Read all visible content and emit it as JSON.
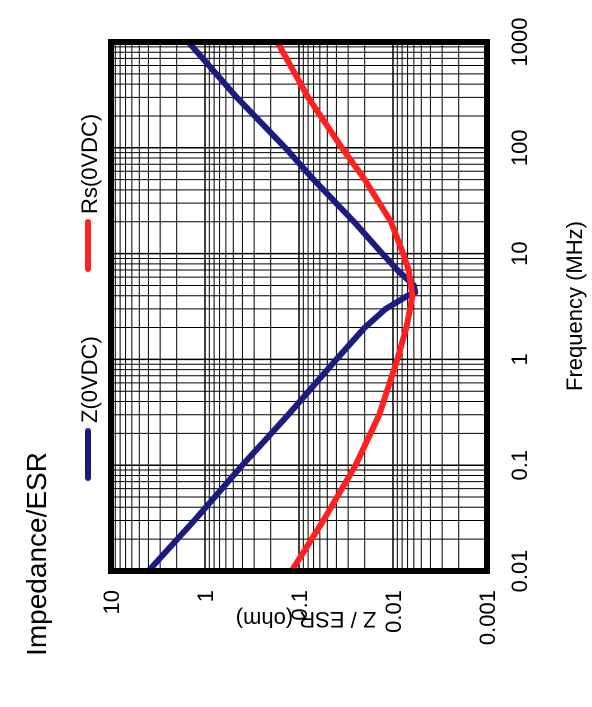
{
  "chart_data": {
    "type": "line",
    "title": "Impedance/ESR",
    "xlabel": "Frequency (MHz)",
    "ylabel": "Z / ESR (ohm)",
    "x_scale": "log",
    "y_scale": "log",
    "xlim": [
      0.01,
      1000
    ],
    "ylim": [
      0.001,
      10
    ],
    "x_ticks": [
      "0.01",
      "0.1",
      "1",
      "10",
      "100",
      "1000"
    ],
    "y_ticks": [
      "0.001",
      "0.01",
      "0.1",
      "1",
      "10"
    ],
    "grid": true,
    "orientation": "rotated 90° counter-clockwise",
    "legend_position": "top",
    "series": [
      {
        "name": "Z(0VDC)",
        "color": "#1c1c80",
        "x": [
          0.01,
          0.03,
          0.1,
          0.3,
          1,
          2,
          3,
          4,
          4.3,
          5,
          7,
          10,
          20,
          50,
          100,
          300,
          1000
        ],
        "y": [
          4.0,
          1.3,
          0.4,
          0.13,
          0.04,
          0.02,
          0.012,
          0.007,
          0.0058,
          0.006,
          0.009,
          0.013,
          0.026,
          0.07,
          0.14,
          0.46,
          1.5
        ]
      },
      {
        "name": "Rs(0VDC)",
        "color": "#ff2020",
        "x": [
          0.01,
          0.03,
          0.1,
          0.3,
          1,
          2,
          4,
          7,
          10,
          20,
          50,
          100,
          300,
          1000
        ],
        "y": [
          0.12,
          0.055,
          0.025,
          0.014,
          0.009,
          0.0072,
          0.0062,
          0.0068,
          0.0078,
          0.0105,
          0.02,
          0.035,
          0.08,
          0.17
        ]
      }
    ]
  }
}
